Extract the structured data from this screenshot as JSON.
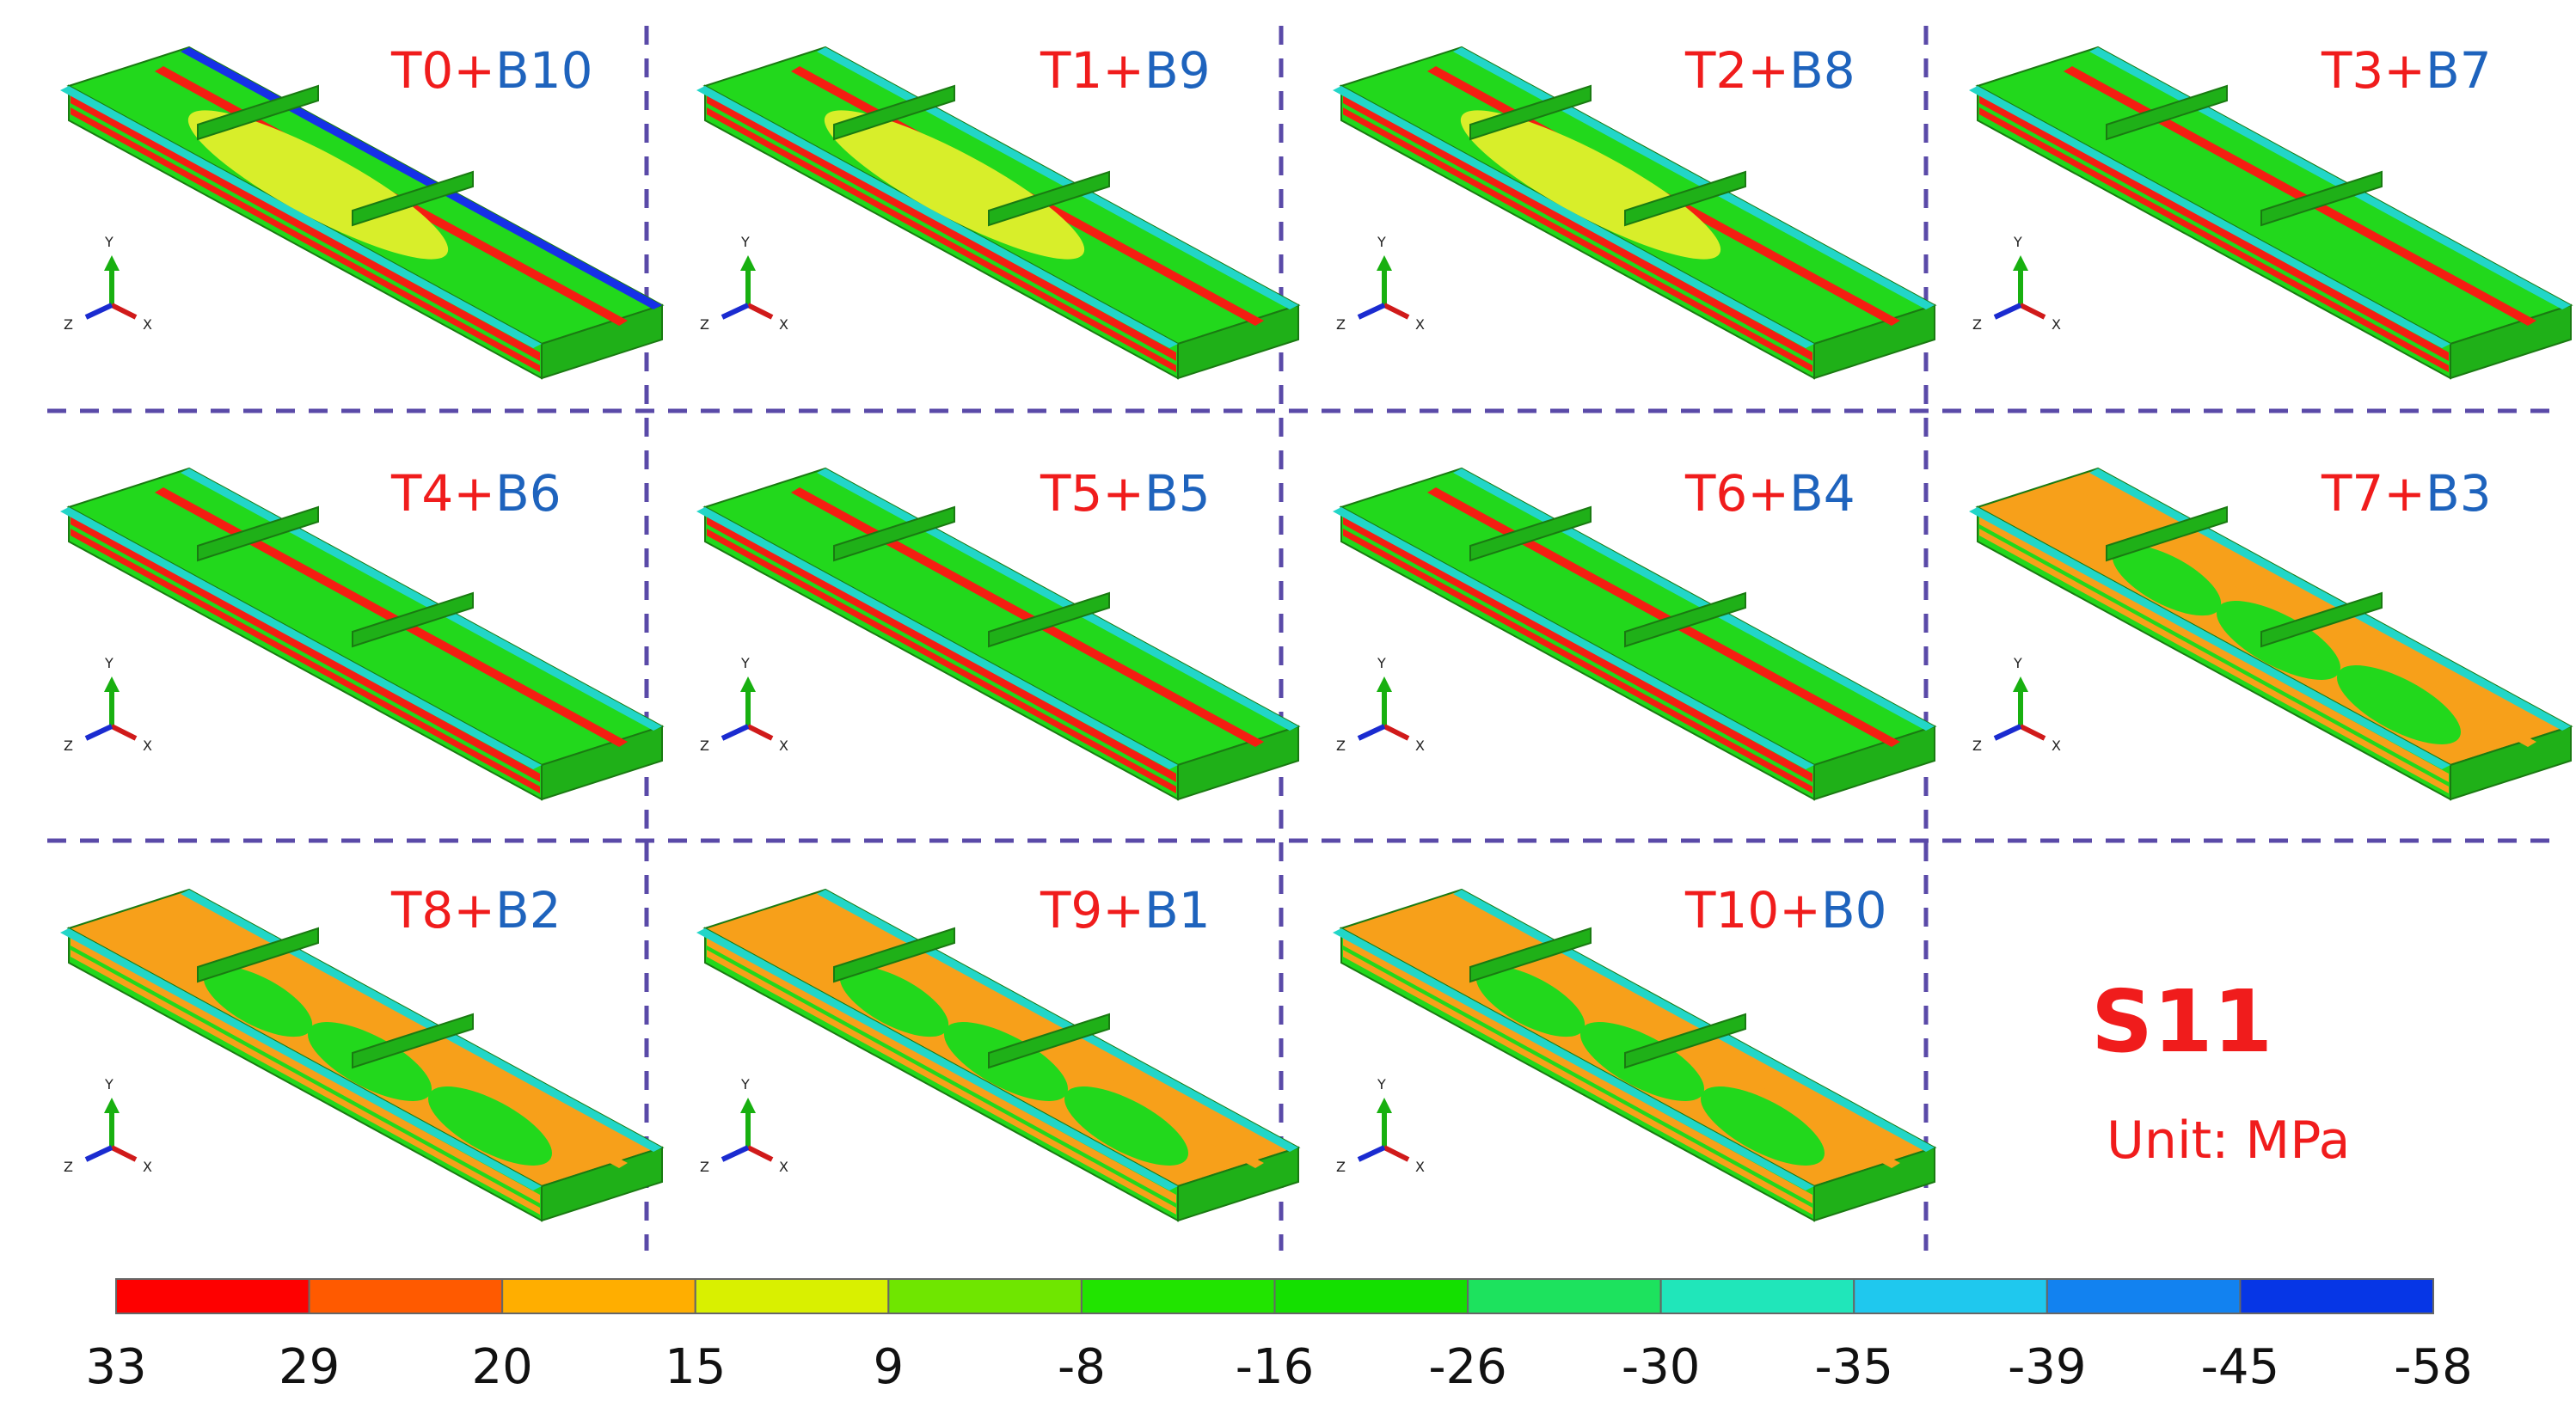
{
  "panels": [
    {
      "top": "T0",
      "bottom": "B10"
    },
    {
      "top": "T1",
      "bottom": "B9"
    },
    {
      "top": "T2",
      "bottom": "B8"
    },
    {
      "top": "T3",
      "bottom": "B7"
    },
    {
      "top": "T4",
      "bottom": "B6"
    },
    {
      "top": "T5",
      "bottom": "B5"
    },
    {
      "top": "T6",
      "bottom": "B4"
    },
    {
      "top": "T7",
      "bottom": "B3"
    },
    {
      "top": "T8",
      "bottom": "B2"
    },
    {
      "top": "T9",
      "bottom": "B1"
    },
    {
      "top": "T10",
      "bottom": "B0"
    }
  ],
  "plus": "+",
  "axis_triad": {
    "y": "Y",
    "x": "X",
    "z": "Z"
  },
  "variable": "S11",
  "unit": "Unit: MPa",
  "colorbar": {
    "ticks": [
      "33",
      "29",
      "20",
      "15",
      "9",
      "-8",
      "-16",
      "-26",
      "-30",
      "-35",
      "-39",
      "-45",
      "-58"
    ],
    "colors": [
      "#fe0000",
      "#ff5a00",
      "#ffae00",
      "#d9f000",
      "#6fe600",
      "#21e400",
      "#14e000",
      "#1de25e",
      "#20e6ba",
      "#1fc8ee",
      "#1282f0",
      "#0636e6",
      "#0010f5"
    ]
  },
  "colors": {
    "top_label": "#f01c1c",
    "bottom_label": "#1e63bd",
    "divider": "#5a4aa8"
  }
}
